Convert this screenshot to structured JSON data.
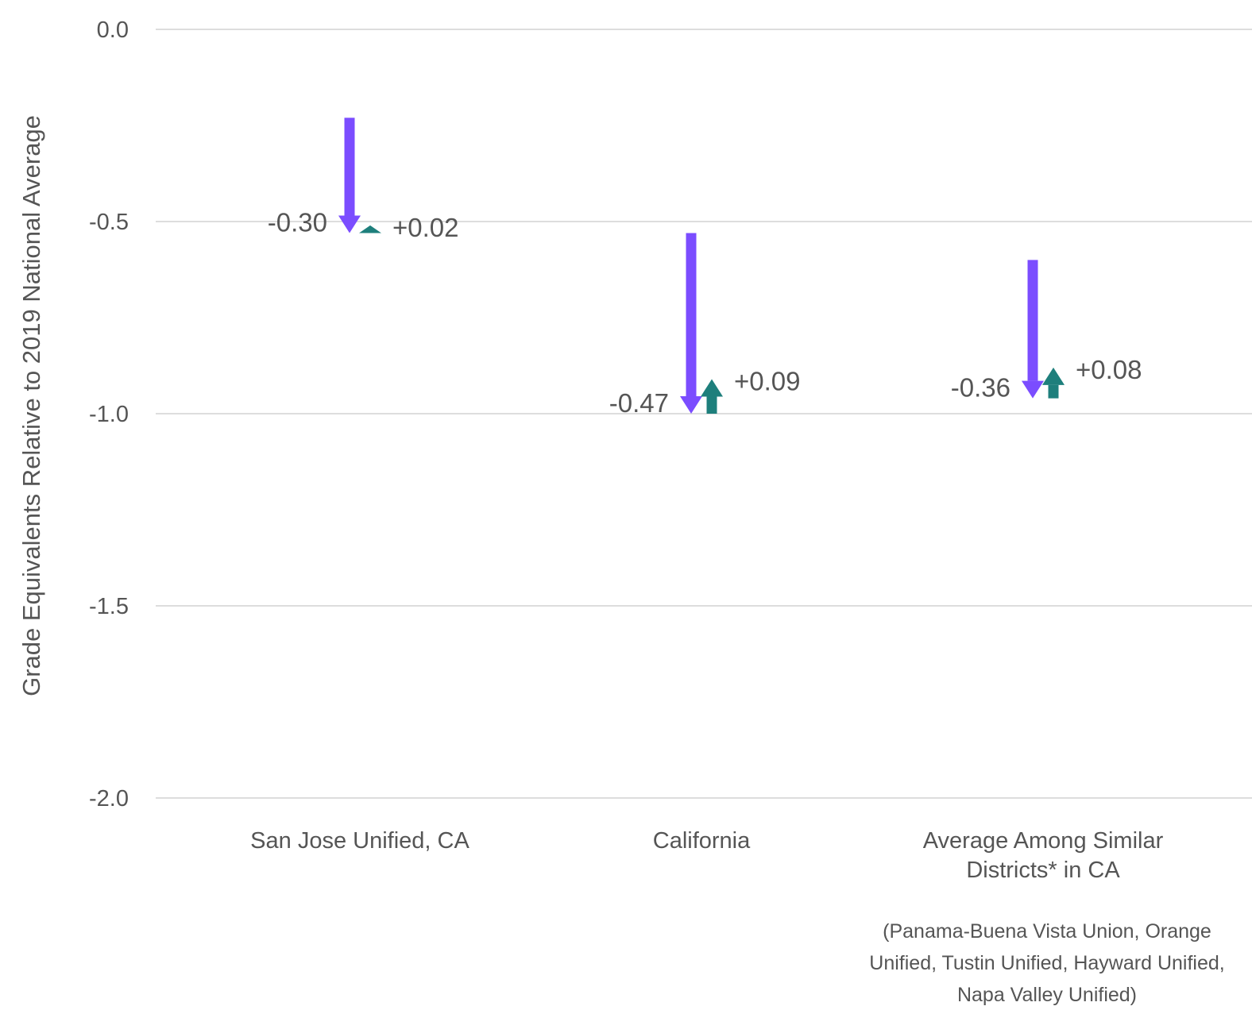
{
  "chart_data": {
    "type": "arrow",
    "title": "",
    "xlabel": "",
    "ylabel": "Grade Equivalents Relative to 2019 National Average",
    "ylim": [
      -2.0,
      0.0
    ],
    "yticks": [
      0.0,
      -0.5,
      -1.0,
      -1.5,
      -2.0
    ],
    "ytick_labels": [
      "0.0",
      "-0.5",
      "-1.0",
      "-1.5",
      "-2.0"
    ],
    "grid": true,
    "colors": {
      "decline": "#7B4DFF",
      "recovery": "#1E7F7C",
      "grid": "#DDDDDD",
      "text": "#555555"
    },
    "categories": [
      {
        "label_lines": [
          "San Jose Unified, CA"
        ],
        "start": -0.23,
        "decline": -0.3,
        "decline_label": "-0.30",
        "recovery": 0.02,
        "recovery_label": "+0.02"
      },
      {
        "label_lines": [
          "California"
        ],
        "start": -0.53,
        "decline": -0.47,
        "decline_label": "-0.47",
        "recovery": 0.09,
        "recovery_label": "+0.09"
      },
      {
        "label_lines": [
          "Average Among Similar",
          "Districts* in CA"
        ],
        "start": -0.6,
        "decline": -0.36,
        "decline_label": "-0.36",
        "recovery": 0.08,
        "recovery_label": "+0.08"
      }
    ],
    "footnote_lines": [
      "(Panama-Buena Vista Union, Orange",
      "Unified, Tustin Unified, Hayward Unified,",
      "Napa Valley Unified)"
    ]
  }
}
